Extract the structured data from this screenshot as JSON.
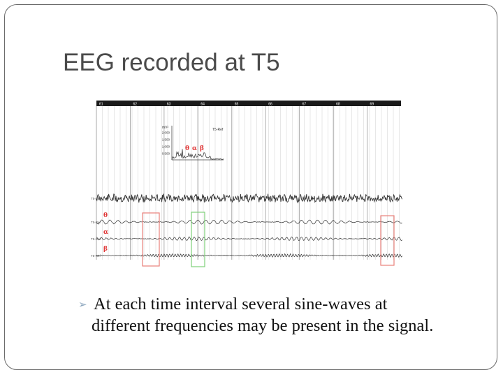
{
  "slide": {
    "title": "EEG recorded at T5",
    "bullet": {
      "icon": "bullet-arrow-icon",
      "line1": "At each time interval several sine-waves at",
      "line2": "different frequencies may be present in the signal."
    }
  },
  "figure": {
    "time_ticks": [
      "61",
      "62",
      "63",
      "64",
      "65",
      "66",
      "67",
      "68",
      "69"
    ],
    "spectrum": {
      "y_unit": "mV²",
      "y_ticks": [
        "2.000",
        "1.500",
        "1.000",
        "0.500"
      ],
      "channel": "T5-Ref",
      "band_labels": [
        "θ",
        "α",
        "β"
      ]
    },
    "traces": [
      {
        "label": "T5-Ref",
        "band": ""
      },
      {
        "label": "T5-Ref",
        "band": "θ"
      },
      {
        "label": "T5-Ref",
        "band": "α"
      },
      {
        "label": "T5-Ref",
        "band": "β"
      }
    ],
    "colors": {
      "band_label": "#e03a3a",
      "red_box": "#e8807a",
      "green_box": "#7fd07a",
      "trace": "#333333",
      "grid": "#cfcfcf"
    }
  }
}
